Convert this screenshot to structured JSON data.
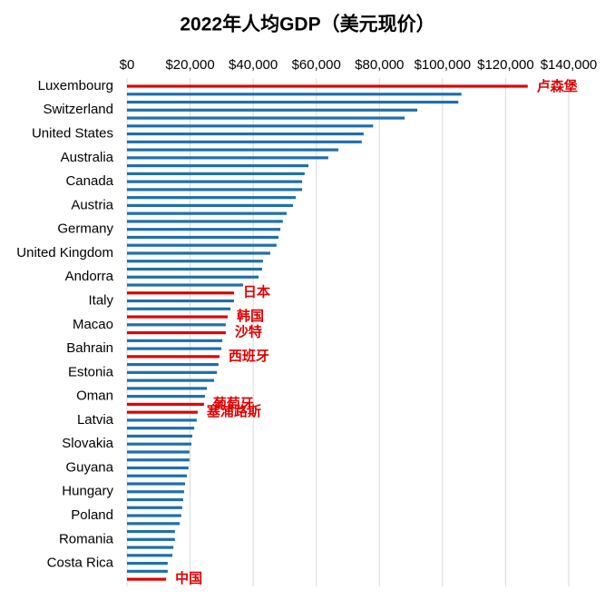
{
  "chart_data": {
    "type": "barh",
    "title": "2022年人均GDP（美元现价）",
    "categories": [
      "Luxembourg",
      null,
      null,
      "Switzerland",
      null,
      null,
      "United States",
      null,
      null,
      "Australia",
      null,
      null,
      "Canada",
      null,
      null,
      "Austria",
      null,
      null,
      "Germany",
      null,
      null,
      "United Kingdom",
      null,
      null,
      "Andorra",
      null,
      null,
      "Italy",
      null,
      null,
      "Macao",
      null,
      null,
      "Bahrain",
      null,
      null,
      "Estonia",
      null,
      null,
      "Oman",
      null,
      null,
      "Latvia",
      null,
      null,
      "Slovakia",
      null,
      null,
      "Guyana",
      null,
      null,
      "Hungary",
      null,
      null,
      "Poland",
      null,
      null,
      "Romania",
      null,
      null,
      "Costa Rica",
      null,
      null
    ],
    "values": [
      127000,
      106000,
      105000,
      92000,
      88000,
      78000,
      75000,
      74400,
      67000,
      63800,
      57500,
      56300,
      55500,
      55500,
      53500,
      52600,
      50600,
      49400,
      48600,
      48000,
      47400,
      45400,
      43100,
      42800,
      41700,
      36800,
      33900,
      33900,
      32800,
      31900,
      31300,
      31300,
      30200,
      29900,
      29300,
      29000,
      28500,
      27600,
      25300,
      24700,
      24400,
      22400,
      22100,
      21300,
      20700,
      20400,
      19800,
      19800,
      19500,
      19000,
      18400,
      18100,
      17800,
      17500,
      17200,
      16700,
      15200,
      15200,
      14700,
      14400,
      12900,
      12900,
      12400
    ],
    "annotations": [
      "卢森堡",
      null,
      null,
      null,
      null,
      null,
      null,
      null,
      null,
      null,
      null,
      null,
      null,
      null,
      null,
      null,
      null,
      null,
      null,
      null,
      null,
      null,
      null,
      null,
      null,
      null,
      "日本",
      null,
      null,
      "韩国",
      null,
      "沙特",
      null,
      null,
      "西班牙",
      null,
      null,
      null,
      null,
      null,
      "葡萄牙",
      "塞浦路斯",
      null,
      null,
      null,
      null,
      null,
      null,
      null,
      null,
      null,
      null,
      null,
      null,
      null,
      null,
      null,
      null,
      null,
      null,
      null,
      null,
      "中国"
    ],
    "color": "#1f6fad",
    "highlight_color": "#e00000",
    "xlim": [
      0,
      140000
    ],
    "xticks": [
      {
        "value": 0,
        "label": "$0"
      },
      {
        "value": 20000,
        "label": "$20,000"
      },
      {
        "value": 40000,
        "label": "$40,000"
      },
      {
        "value": 60000,
        "label": "$60,000"
      },
      {
        "value": 80000,
        "label": "$80,000"
      },
      {
        "value": 100000,
        "label": "$100,000"
      },
      {
        "value": 120000,
        "label": "$120,000"
      },
      {
        "value": 140000,
        "label": "$140,000"
      }
    ],
    "grid": true
  }
}
